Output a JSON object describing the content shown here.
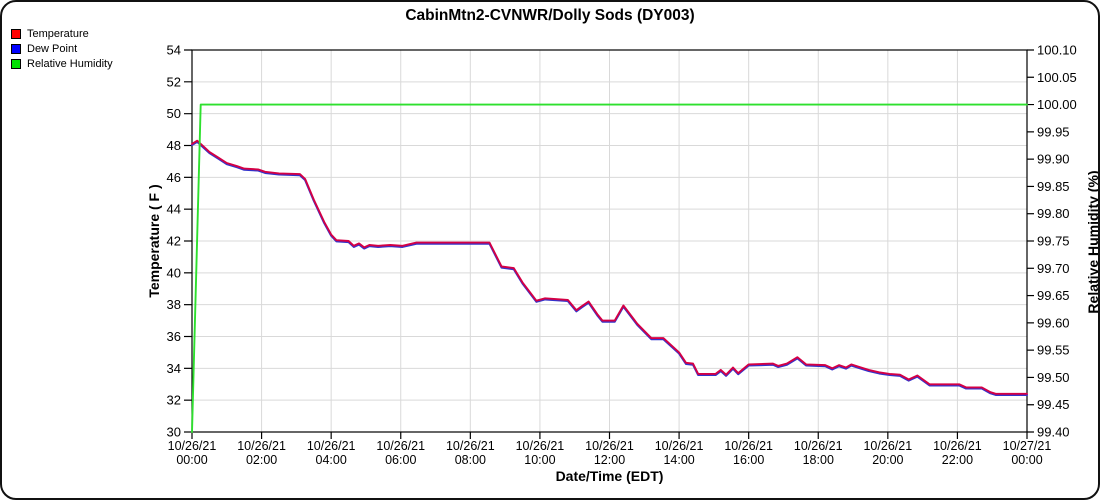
{
  "chart_data": {
    "type": "line",
    "title": "CabinMtn2-CVNWR/Dolly Sods (DY003)",
    "xlabel": "Date/Time (EDT)",
    "ylabel_left": "Temperature ( F )",
    "ylabel_right": "Relative Humidity (%)",
    "grid": true,
    "legend_position": "top-left",
    "left_axis": {
      "min": 30,
      "max": 54,
      "tick_step": 2,
      "decimals": 0
    },
    "right_axis": {
      "min": 99.4,
      "max": 100.1,
      "tick_step": 0.05,
      "decimals": 2
    },
    "x_axis": {
      "min_hours": 0,
      "max_hours": 24,
      "tick_step_hours": 2,
      "tick_labels": [
        {
          "date": "10/26/21",
          "time": "00:00"
        },
        {
          "date": "10/26/21",
          "time": "02:00"
        },
        {
          "date": "10/26/21",
          "time": "04:00"
        },
        {
          "date": "10/26/21",
          "time": "06:00"
        },
        {
          "date": "10/26/21",
          "time": "08:00"
        },
        {
          "date": "10/26/21",
          "time": "10:00"
        },
        {
          "date": "10/26/21",
          "time": "12:00"
        },
        {
          "date": "10/26/21",
          "time": "14:00"
        },
        {
          "date": "10/26/21",
          "time": "16:00"
        },
        {
          "date": "10/26/21",
          "time": "18:00"
        },
        {
          "date": "10/26/21",
          "time": "20:00"
        },
        {
          "date": "10/26/21",
          "time": "22:00"
        },
        {
          "date": "10/27/21",
          "time": "00:00"
        }
      ]
    },
    "series": [
      {
        "name": "Temperature",
        "yaxis": "left",
        "units": "F",
        "color": "#d40045",
        "legend_color": "#ff0000",
        "points": [
          [
            0,
            48.1
          ],
          [
            0.15,
            48.3
          ],
          [
            0.35,
            47.9
          ],
          [
            0.5,
            47.6
          ],
          [
            0.75,
            47.25
          ],
          [
            1,
            46.9
          ],
          [
            1.3,
            46.7
          ],
          [
            1.5,
            46.55
          ],
          [
            1.9,
            46.5
          ],
          [
            2.1,
            46.35
          ],
          [
            2.5,
            46.25
          ],
          [
            3.1,
            46.2
          ],
          [
            3.25,
            45.9
          ],
          [
            3.5,
            44.6
          ],
          [
            3.8,
            43.2
          ],
          [
            4,
            42.4
          ],
          [
            4.15,
            42.05
          ],
          [
            4.5,
            42.0
          ],
          [
            4.65,
            41.7
          ],
          [
            4.8,
            41.85
          ],
          [
            4.95,
            41.6
          ],
          [
            5.1,
            41.75
          ],
          [
            5.35,
            41.7
          ],
          [
            5.7,
            41.75
          ],
          [
            6.05,
            41.7
          ],
          [
            6.45,
            41.9
          ],
          [
            8.55,
            41.9
          ],
          [
            8.9,
            40.4
          ],
          [
            9.25,
            40.3
          ],
          [
            9.5,
            39.4
          ],
          [
            9.9,
            38.25
          ],
          [
            10.15,
            38.4
          ],
          [
            10.8,
            38.3
          ],
          [
            11.05,
            37.65
          ],
          [
            11.2,
            37.9
          ],
          [
            11.4,
            38.2
          ],
          [
            11.65,
            37.4
          ],
          [
            11.8,
            37.0
          ],
          [
            12.15,
            37.0
          ],
          [
            12.4,
            37.95
          ],
          [
            12.8,
            36.8
          ],
          [
            13.2,
            35.9
          ],
          [
            13.55,
            35.9
          ],
          [
            14,
            35.0
          ],
          [
            14.2,
            34.35
          ],
          [
            14.4,
            34.3
          ],
          [
            14.55,
            33.65
          ],
          [
            15.05,
            33.65
          ],
          [
            15.2,
            33.9
          ],
          [
            15.35,
            33.6
          ],
          [
            15.55,
            34.05
          ],
          [
            15.7,
            33.7
          ],
          [
            16,
            34.25
          ],
          [
            16.7,
            34.3
          ],
          [
            16.85,
            34.15
          ],
          [
            17.1,
            34.3
          ],
          [
            17.4,
            34.7
          ],
          [
            17.65,
            34.25
          ],
          [
            18.2,
            34.2
          ],
          [
            18.4,
            34.0
          ],
          [
            18.6,
            34.2
          ],
          [
            18.8,
            34.05
          ],
          [
            18.95,
            34.25
          ],
          [
            19.15,
            34.1
          ],
          [
            19.45,
            33.9
          ],
          [
            19.75,
            33.75
          ],
          [
            20.05,
            33.65
          ],
          [
            20.35,
            33.6
          ],
          [
            20.6,
            33.3
          ],
          [
            20.85,
            33.55
          ],
          [
            21.2,
            33.0
          ],
          [
            22.05,
            33.0
          ],
          [
            22.25,
            32.8
          ],
          [
            22.7,
            32.8
          ],
          [
            22.95,
            32.5
          ],
          [
            23.1,
            32.4
          ],
          [
            24,
            32.4
          ]
        ]
      },
      {
        "name": "Dew Point",
        "yaxis": "left",
        "units": "F",
        "color": "#3333cc",
        "legend_color": "#0000ff",
        "points": [
          [
            0,
            48.1
          ],
          [
            0.15,
            48.3
          ],
          [
            0.35,
            47.9
          ],
          [
            0.5,
            47.6
          ],
          [
            0.75,
            47.25
          ],
          [
            1,
            46.9
          ],
          [
            1.3,
            46.7
          ],
          [
            1.5,
            46.55
          ],
          [
            1.9,
            46.5
          ],
          [
            2.1,
            46.35
          ],
          [
            2.5,
            46.25
          ],
          [
            3.1,
            46.2
          ],
          [
            3.25,
            45.9
          ],
          [
            3.5,
            44.6
          ],
          [
            3.8,
            43.2
          ],
          [
            4,
            42.4
          ],
          [
            4.15,
            42.05
          ],
          [
            4.5,
            42.0
          ],
          [
            4.65,
            41.7
          ],
          [
            4.8,
            41.85
          ],
          [
            4.95,
            41.6
          ],
          [
            5.1,
            41.75
          ],
          [
            5.35,
            41.7
          ],
          [
            5.7,
            41.75
          ],
          [
            6.05,
            41.7
          ],
          [
            6.45,
            41.9
          ],
          [
            8.55,
            41.9
          ],
          [
            8.9,
            40.4
          ],
          [
            9.25,
            40.3
          ],
          [
            9.5,
            39.4
          ],
          [
            9.9,
            38.25
          ],
          [
            10.15,
            38.4
          ],
          [
            10.8,
            38.3
          ],
          [
            11.05,
            37.65
          ],
          [
            11.2,
            37.9
          ],
          [
            11.4,
            38.2
          ],
          [
            11.65,
            37.4
          ],
          [
            11.8,
            37.0
          ],
          [
            12.15,
            37.0
          ],
          [
            12.4,
            37.95
          ],
          [
            12.8,
            36.8
          ],
          [
            13.2,
            35.9
          ],
          [
            13.55,
            35.9
          ],
          [
            14,
            35.0
          ],
          [
            14.2,
            34.35
          ],
          [
            14.4,
            34.3
          ],
          [
            14.55,
            33.65
          ],
          [
            15.05,
            33.65
          ],
          [
            15.2,
            33.9
          ],
          [
            15.35,
            33.6
          ],
          [
            15.55,
            34.05
          ],
          [
            15.7,
            33.7
          ],
          [
            16,
            34.25
          ],
          [
            16.7,
            34.3
          ],
          [
            16.85,
            34.15
          ],
          [
            17.1,
            34.3
          ],
          [
            17.4,
            34.7
          ],
          [
            17.65,
            34.25
          ],
          [
            18.2,
            34.2
          ],
          [
            18.4,
            34.0
          ],
          [
            18.6,
            34.2
          ],
          [
            18.8,
            34.05
          ],
          [
            18.95,
            34.25
          ],
          [
            19.15,
            34.1
          ],
          [
            19.45,
            33.9
          ],
          [
            19.75,
            33.75
          ],
          [
            20.05,
            33.65
          ],
          [
            20.35,
            33.6
          ],
          [
            20.6,
            33.3
          ],
          [
            20.85,
            33.55
          ],
          [
            21.2,
            33.0
          ],
          [
            22.05,
            33.0
          ],
          [
            22.25,
            32.8
          ],
          [
            22.7,
            32.8
          ],
          [
            22.95,
            32.5
          ],
          [
            23.1,
            32.4
          ],
          [
            24,
            32.4
          ]
        ]
      },
      {
        "name": "Relative Humidity",
        "yaxis": "right",
        "units": "%",
        "color": "#2ee02e",
        "legend_color": "#00e000",
        "points": [
          [
            0,
            99.4
          ],
          [
            0.25,
            100.0
          ],
          [
            24,
            100.0
          ]
        ]
      }
    ]
  },
  "colors": {
    "grid": "#d9d9d9",
    "axis": "#000000",
    "background": "#ffffff"
  }
}
